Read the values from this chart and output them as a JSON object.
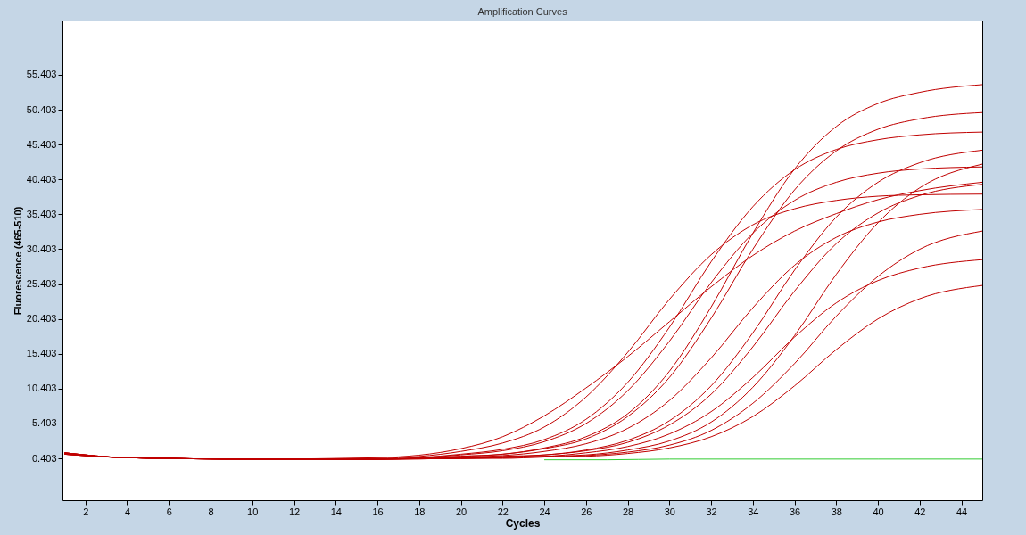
{
  "chart_data": {
    "type": "line",
    "title": "Amplification Curves",
    "xlabel": "Cycles",
    "ylabel": "Fluorescence (465-510)",
    "x": [
      1,
      4,
      10,
      16,
      20,
      22,
      24,
      26,
      28,
      30,
      32,
      34,
      36,
      38,
      40,
      42,
      45
    ],
    "xlim": [
      0.9,
      45
    ],
    "xticks": [
      2,
      4,
      6,
      8,
      10,
      12,
      14,
      16,
      18,
      20,
      22,
      24,
      26,
      28,
      30,
      32,
      34,
      36,
      38,
      40,
      42,
      44
    ],
    "ylim": [
      -5.6,
      63.2
    ],
    "yticks": [
      0.403,
      5.403,
      10.403,
      15.403,
      20.403,
      25.403,
      30.403,
      35.403,
      40.403,
      45.403,
      50.403,
      55.403
    ],
    "grid": false,
    "legend": false,
    "line_style": "solid",
    "marker": "none",
    "series": [
      {
        "color": "#c00000",
        "values": [
          1.2,
          0.5,
          0.3,
          0.5,
          1.8,
          3.5,
          6.5,
          10.5,
          15,
          20,
          25,
          29.5,
          33,
          35.5,
          37.5,
          38.8,
          40
        ]
      },
      {
        "color": "#c00000",
        "values": [
          1.2,
          0.5,
          0.3,
          0.3,
          0.7,
          1.0,
          1.9,
          3.5,
          6.8,
          12.9,
          22.1,
          32.7,
          41.9,
          48,
          51.3,
          52.9,
          54
        ]
      },
      {
        "color": "#c00000",
        "values": [
          1.1,
          0.5,
          0.3,
          0.3,
          0.7,
          1.0,
          1.8,
          3.2,
          6.4,
          12,
          20.5,
          30.4,
          38.9,
          44.5,
          47.6,
          49.1,
          50
        ]
      },
      {
        "color": "#c00000",
        "values": [
          1.0,
          0.5,
          0.3,
          0.3,
          1.0,
          1.7,
          3.1,
          6.0,
          11.3,
          19.2,
          28.6,
          36.5,
          41.8,
          44.7,
          46.1,
          46.8,
          47.2
        ]
      },
      {
        "color": "#c00000",
        "values": [
          1.2,
          0.5,
          0.3,
          0.3,
          0.5,
          0.7,
          0.9,
          1.6,
          3.0,
          5.8,
          10.8,
          18.4,
          27.4,
          35,
          40,
          42.8,
          44.6
        ]
      },
      {
        "color": "#c00000",
        "values": [
          1.1,
          0.5,
          0.3,
          0.3,
          0.9,
          1.5,
          2.8,
          5.4,
          10.1,
          17.2,
          25.6,
          32.7,
          37.4,
          40,
          41.3,
          41.9,
          42.2
        ]
      },
      {
        "color": "#c00000",
        "values": [
          1.0,
          0.5,
          0.3,
          0.3,
          0.5,
          0.6,
          0.9,
          1.5,
          2.7,
          5.2,
          9.6,
          16.4,
          24.4,
          31.2,
          35.6,
          38.1,
          39.7
        ]
      },
      {
        "color": "#c00000",
        "values": [
          1.2,
          0.5,
          0.3,
          0.3,
          0.4,
          0.5,
          0.7,
          0.9,
          1.6,
          2.9,
          5.6,
          10.6,
          18,
          26.8,
          34.2,
          39.2,
          42.6
        ]
      },
      {
        "color": "#c00000",
        "values": [
          1.1,
          0.5,
          0.3,
          0.4,
          1.4,
          2.6,
          4.9,
          9.2,
          15.6,
          23.2,
          29.6,
          33.9,
          36.2,
          37.4,
          38,
          38.2,
          38.3
        ]
      },
      {
        "color": "#c00000",
        "values": [
          1.0,
          0.5,
          0.3,
          0.3,
          0.6,
          0.8,
          1.4,
          2.5,
          4.7,
          8.7,
          14.8,
          22,
          28.1,
          32.1,
          34.3,
          35.4,
          36.1
        ]
      },
      {
        "color": "#c00000",
        "values": [
          1.2,
          0.5,
          0.3,
          0.3,
          0.4,
          0.5,
          0.6,
          0.8,
          1.3,
          2.3,
          4.4,
          8.3,
          14,
          20.8,
          26.5,
          30.4,
          33
        ]
      },
      {
        "color": "#c00000",
        "values": [
          1.1,
          0.5,
          0.3,
          0.3,
          0.4,
          0.6,
          0.7,
          1.2,
          2.1,
          3.9,
          7.1,
          12,
          17.8,
          22.7,
          25.9,
          27.7,
          28.9
        ]
      },
      {
        "color": "#c00000",
        "values": [
          1.0,
          0.5,
          0.3,
          0.3,
          0.4,
          0.4,
          0.6,
          0.7,
          1.1,
          1.9,
          3.5,
          6.4,
          10.8,
          16,
          20.4,
          23.3,
          25.2
        ]
      },
      {
        "color": "#33cc33",
        "x": [
          24,
          27,
          30,
          35,
          40,
          45
        ],
        "values": [
          0.2,
          0.2,
          0.3,
          0.3,
          0.3,
          0.3
        ]
      }
    ]
  }
}
